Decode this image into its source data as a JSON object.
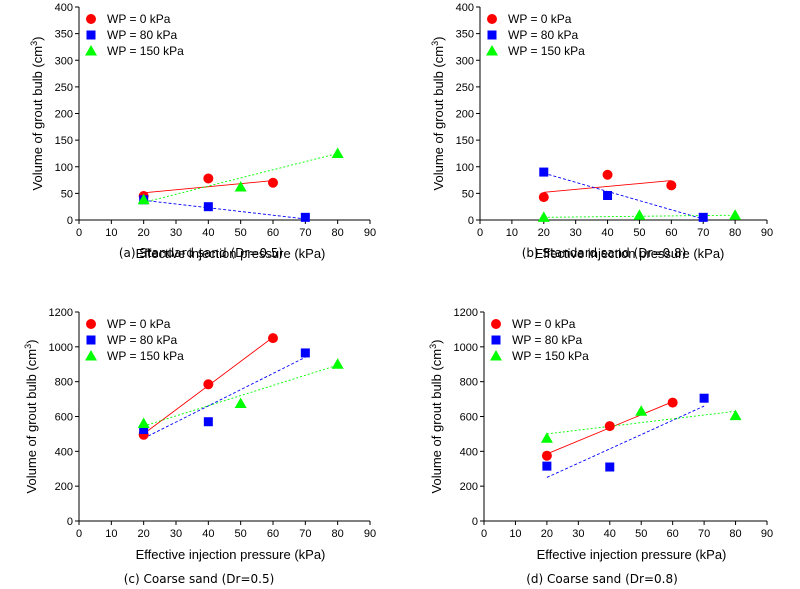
{
  "legend_entries": [
    "WP = 0 kPa",
    "WP = 80 kPa",
    "WP = 150 kPa"
  ],
  "chart_data": [
    {
      "type": "scatter",
      "caption": "(a)  Standard  sand  (Dr=0.5)",
      "xlabel": "Effective injection pressure (kPa)",
      "ylabel_main": "Volume of grout bulb (cm",
      "ylabel_sup": "3",
      "ylabel_close": ")",
      "xlim": [
        0,
        90
      ],
      "ylim": [
        0,
        400
      ],
      "xticks": [
        0,
        10,
        20,
        30,
        40,
        50,
        60,
        70,
        80,
        90
      ],
      "yticks": [
        0,
        50,
        100,
        150,
        200,
        250,
        300,
        350,
        400
      ],
      "grid": false,
      "legend_position": "top-left",
      "series": [
        {
          "name": "WP = 0 kPa",
          "marker": "circle",
          "color": "#ff0000",
          "x": [
            20,
            40,
            60
          ],
          "y": [
            45,
            78,
            70
          ],
          "trend": [
            [
              20,
              51
            ],
            [
              60,
              74
            ]
          ]
        },
        {
          "name": "WP = 80 kPa",
          "marker": "square",
          "color": "#0000ff",
          "x": [
            20,
            40,
            70
          ],
          "y": [
            38,
            25,
            5
          ],
          "trend": [
            [
              20,
              37
            ],
            [
              70,
              2
            ]
          ]
        },
        {
          "name": "WP = 150 kPa",
          "marker": "triangle",
          "color": "#00ff00",
          "x": [
            20,
            50,
            80
          ],
          "y": [
            38,
            62,
            125
          ],
          "trend": [
            [
              20,
              33
            ],
            [
              80,
              125
            ]
          ]
        }
      ]
    },
    {
      "type": "scatter",
      "caption": "(b)  Standard  sand  (Dr=0.8)",
      "xlabel": "Effective injection pressure (kPa)",
      "ylabel_main": "Volume of grout bulb (cm",
      "ylabel_sup": "3",
      "ylabel_close": ")",
      "xlim": [
        0,
        90
      ],
      "ylim": [
        0,
        400
      ],
      "xticks": [
        0,
        10,
        20,
        30,
        40,
        50,
        60,
        70,
        80,
        90
      ],
      "yticks": [
        0,
        50,
        100,
        150,
        200,
        250,
        300,
        350,
        400
      ],
      "grid": false,
      "legend_position": "top-left",
      "series": [
        {
          "name": "WP = 0 kPa",
          "marker": "circle",
          "color": "#ff0000",
          "x": [
            20,
            40,
            60
          ],
          "y": [
            43,
            85,
            65
          ],
          "trend": [
            [
              20,
              52
            ],
            [
              60,
              74
            ]
          ]
        },
        {
          "name": "WP = 80 kPa",
          "marker": "square",
          "color": "#0000ff",
          "x": [
            20,
            40,
            70
          ],
          "y": [
            90,
            46,
            5
          ],
          "trend": [
            [
              20,
              88
            ],
            [
              70,
              2
            ]
          ]
        },
        {
          "name": "WP = 150 kPa",
          "marker": "triangle",
          "color": "#00ff00",
          "x": [
            20,
            50,
            80
          ],
          "y": [
            5,
            9,
            9
          ],
          "trend": [
            [
              20,
              5
            ],
            [
              80,
              9
            ]
          ]
        }
      ]
    },
    {
      "type": "scatter",
      "caption": "(c)  Coarse  sand  (Dr=0.5)",
      "xlabel": "Effective injection pressure (kPa)",
      "ylabel_main": "Volume of grout bulb (cm",
      "ylabel_sup": "3",
      "ylabel_close": ")",
      "xlim": [
        0,
        90
      ],
      "ylim": [
        0,
        1200
      ],
      "xticks": [
        0,
        10,
        20,
        30,
        40,
        50,
        60,
        70,
        80,
        90
      ],
      "yticks": [
        0,
        200,
        400,
        600,
        800,
        1000,
        1200
      ],
      "grid": false,
      "legend_position": "top-left",
      "series": [
        {
          "name": "WP = 0 kPa",
          "marker": "circle",
          "color": "#ff0000",
          "x": [
            20,
            40,
            60
          ],
          "y": [
            495,
            785,
            1050
          ],
          "trend": [
            [
              20,
              500
            ],
            [
              60,
              1055
            ]
          ]
        },
        {
          "name": "WP = 80 kPa",
          "marker": "square",
          "color": "#0000ff",
          "x": [
            20,
            40,
            70
          ],
          "y": [
            525,
            570,
            965
          ],
          "trend": [
            [
              20,
              475
            ],
            [
              70,
              940
            ]
          ]
        },
        {
          "name": "WP = 150 kPa",
          "marker": "triangle",
          "color": "#00ff00",
          "x": [
            20,
            50,
            80
          ],
          "y": [
            560,
            675,
            900
          ],
          "trend": [
            [
              20,
              545
            ],
            [
              80,
              895
            ]
          ]
        }
      ]
    },
    {
      "type": "scatter",
      "caption": "(d)  Coarse  sand  (Dr=0.8)",
      "xlabel": "Effective injection pressure (kPa)",
      "ylabel_main": "Volume of grout bulb (cm",
      "ylabel_sup": "3",
      "ylabel_close": ")",
      "xlim": [
        0,
        90
      ],
      "ylim": [
        0,
        1200
      ],
      "xticks": [
        0,
        10,
        20,
        30,
        40,
        50,
        60,
        70,
        80,
        90
      ],
      "yticks": [
        0,
        200,
        400,
        600,
        800,
        1000,
        1200
      ],
      "grid": false,
      "legend_position": "top-left",
      "series": [
        {
          "name": "WP = 0 kPa",
          "marker": "circle",
          "color": "#ff0000",
          "x": [
            20,
            40,
            60
          ],
          "y": [
            375,
            545,
            680
          ],
          "trend": [
            [
              20,
              385
            ],
            [
              60,
              685
            ]
          ]
        },
        {
          "name": "WP = 80 kPa",
          "marker": "square",
          "color": "#0000ff",
          "x": [
            20,
            40,
            70
          ],
          "y": [
            315,
            310,
            705
          ],
          "trend": [
            [
              20,
              250
            ],
            [
              70,
              660
            ]
          ]
        },
        {
          "name": "WP = 150 kPa",
          "marker": "triangle",
          "color": "#00ff00",
          "x": [
            20,
            50,
            80
          ],
          "y": [
            475,
            630,
            605
          ],
          "trend": [
            [
              20,
              500
            ],
            [
              80,
              630
            ]
          ]
        }
      ]
    }
  ]
}
